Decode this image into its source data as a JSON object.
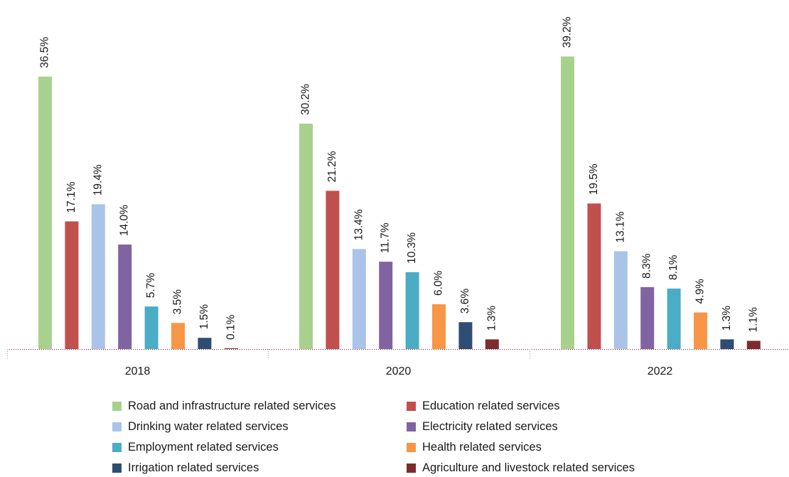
{
  "chart_data": {
    "type": "bar",
    "categories": [
      "2018",
      "2020",
      "2022"
    ],
    "ylim": [
      0,
      42
    ],
    "series": [
      {
        "name": "Road and infrastructure related services",
        "color": "#a9d18e",
        "values": [
          36.5,
          30.2,
          39.2
        ],
        "labels": [
          "36.5%",
          "30.2%",
          "39.2%"
        ]
      },
      {
        "name": "Education related services",
        "color": "#c0504d",
        "values": [
          17.1,
          21.2,
          19.5
        ],
        "labels": [
          "17.1%",
          "21.2%",
          "19.5%"
        ]
      },
      {
        "name": "Drinking water related services",
        "color": "#a9c4e8",
        "values": [
          19.4,
          13.4,
          13.1
        ],
        "labels": [
          "19.4%",
          "13.4%",
          "13.1%"
        ]
      },
      {
        "name": "Electricity related services",
        "color": "#8064a2",
        "values": [
          14.0,
          11.7,
          8.3
        ],
        "labels": [
          "14.0%",
          "11.7%",
          "8.3%"
        ]
      },
      {
        "name": "Employment related services",
        "color": "#4bacc6",
        "values": [
          5.7,
          10.3,
          8.1
        ],
        "labels": [
          "5.7%",
          "10.3%",
          "8.1%"
        ]
      },
      {
        "name": "Health related services",
        "color": "#f79646",
        "values": [
          3.5,
          6.0,
          4.9
        ],
        "labels": [
          "3.5%",
          "6.0%",
          "4.9%"
        ]
      },
      {
        "name": "Irrigation related services",
        "color": "#2e4d73",
        "values": [
          1.5,
          3.6,
          1.3
        ],
        "labels": [
          "1.5%",
          "3.6%",
          "1.3%"
        ]
      },
      {
        "name": "Agriculture and livestock related services",
        "color": "#7b2c2c",
        "values": [
          0.1,
          1.3,
          1.1
        ],
        "labels": [
          "0.1%",
          "1.3%",
          "1.1%"
        ]
      }
    ],
    "axis_color": "#a0003a",
    "grid": false,
    "legend_position": "bottom"
  }
}
